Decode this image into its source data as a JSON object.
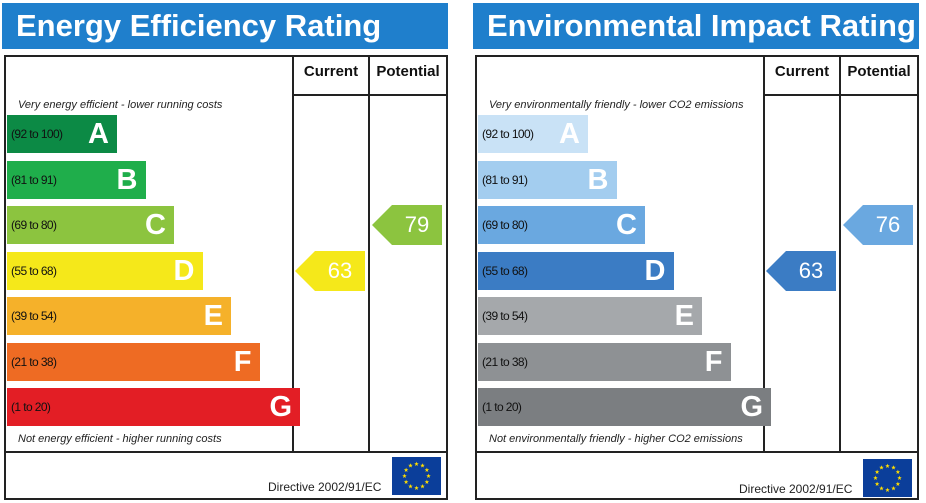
{
  "chart_data": [
    {
      "type": "bar",
      "title": "Energy Efficiency Rating",
      "columns": [
        "Current",
        "Potential"
      ],
      "top_note": "Very energy efficient - lower running costs",
      "bottom_note": "Not energy efficient - higher running costs",
      "bands": [
        {
          "range": "(92 to 100)",
          "letter": "A",
          "color": "#0c8a45",
          "level": 1
        },
        {
          "range": "(81 to 91)",
          "letter": "B",
          "color": "#1fae4b",
          "level": 2
        },
        {
          "range": "(69 to 80)",
          "letter": "C",
          "color": "#8cc43f",
          "level": 3
        },
        {
          "range": "(55 to 68)",
          "letter": "D",
          "color": "#f5e81a",
          "level": 4
        },
        {
          "range": "(39 to 54)",
          "letter": "E",
          "color": "#f5b12a",
          "level": 5
        },
        {
          "range": "(21 to 38)",
          "letter": "F",
          "color": "#ee6b23",
          "level": 6
        },
        {
          "range": "(1 to 20)",
          "letter": "G",
          "color": "#e31e25",
          "level": 7
        }
      ],
      "current": {
        "value": "63",
        "band": "D",
        "color": "#f5e81a"
      },
      "potential": {
        "value": "79",
        "band": "C",
        "color": "#8cc43f"
      },
      "directive": "Directive 2002/91/EC"
    },
    {
      "type": "bar",
      "title": "Environmental Impact Rating",
      "columns": [
        "Current",
        "Potential"
      ],
      "top_note": "Very environmentally friendly - lower CO2 emissions",
      "bottom_note": "Not environmentally friendly - higher CO2 emissions",
      "bands": [
        {
          "range": "(92 to 100)",
          "letter": "A",
          "color": "#c9e2f6",
          "level": 1
        },
        {
          "range": "(81 to 91)",
          "letter": "B",
          "color": "#a3cdef",
          "level": 2
        },
        {
          "range": "(69 to 80)",
          "letter": "C",
          "color": "#6aa8e0",
          "level": 3
        },
        {
          "range": "(55 to 68)",
          "letter": "D",
          "color": "#3b7cc4",
          "level": 4
        },
        {
          "range": "(39 to 54)",
          "letter": "E",
          "color": "#a5a8ab",
          "level": 5
        },
        {
          "range": "(21 to 38)",
          "letter": "F",
          "color": "#8e9194",
          "level": 6
        },
        {
          "range": "(1 to 20)",
          "letter": "G",
          "color": "#7b7e81",
          "level": 7
        }
      ],
      "current": {
        "value": "63",
        "band": "D",
        "color": "#3b7cc4"
      },
      "potential": {
        "value": "76",
        "band": "C",
        "color": "#6aa8e0"
      },
      "directive": "Directive 2002/91/EC"
    }
  ]
}
